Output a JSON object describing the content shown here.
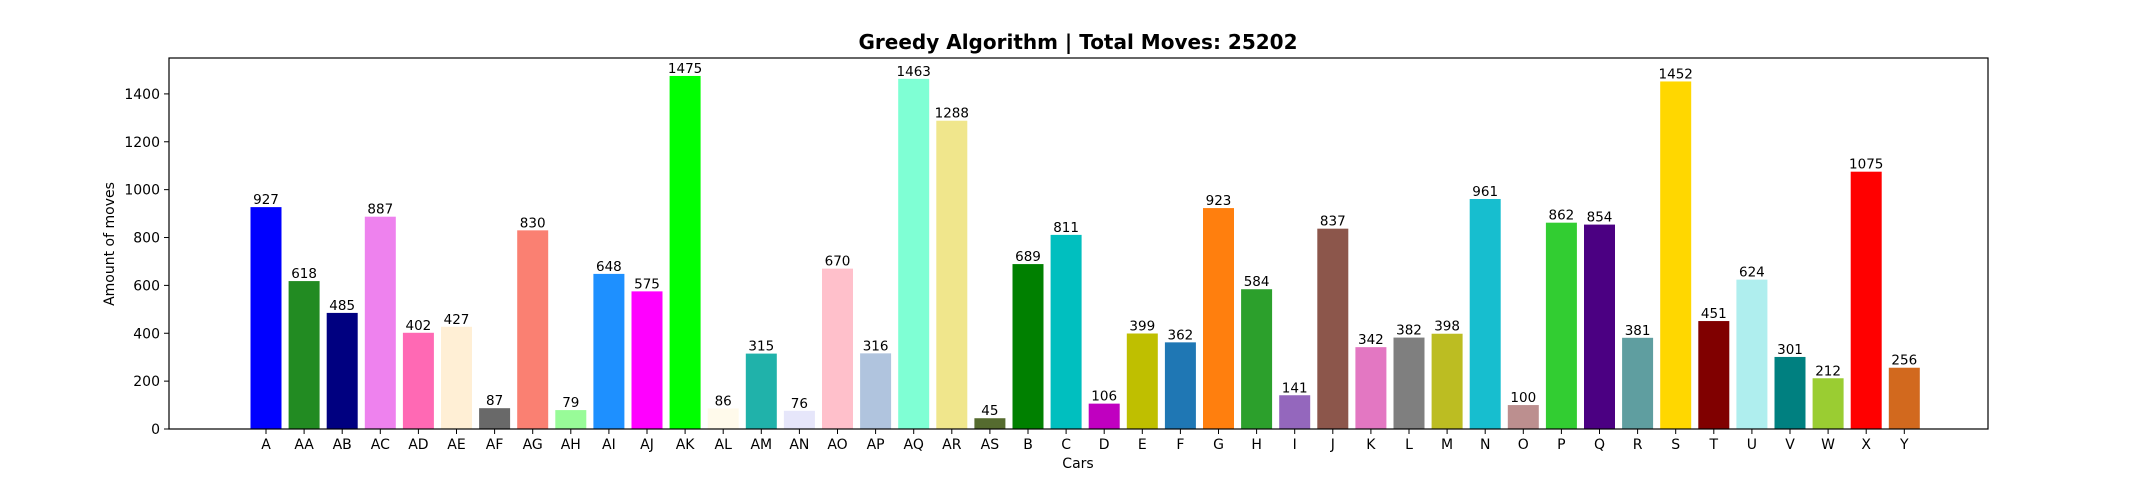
{
  "chart_data": {
    "type": "bar",
    "title": "Greedy Algorithm | Total Moves: 25202",
    "xlabel": "Cars",
    "ylabel": "Amount of moves",
    "ylim": [
      0,
      1550
    ],
    "yticks": [
      0,
      200,
      400,
      600,
      800,
      1000,
      1200,
      1400
    ],
    "grid": false,
    "categories": [
      "A",
      "AA",
      "AB",
      "AC",
      "AD",
      "AE",
      "AF",
      "AG",
      "AH",
      "AI",
      "AJ",
      "AK",
      "AL",
      "AM",
      "AN",
      "AO",
      "AP",
      "AQ",
      "AR",
      "AS",
      "B",
      "C",
      "D",
      "E",
      "F",
      "G",
      "H",
      "I",
      "J",
      "K",
      "L",
      "M",
      "N",
      "O",
      "P",
      "Q",
      "R",
      "S",
      "T",
      "U",
      "V",
      "W",
      "X",
      "Y"
    ],
    "values": [
      927,
      618,
      485,
      887,
      402,
      427,
      87,
      830,
      79,
      648,
      575,
      1475,
      86,
      315,
      76,
      670,
      316,
      1463,
      1288,
      45,
      689,
      811,
      106,
      399,
      362,
      923,
      584,
      141,
      837,
      342,
      382,
      398,
      961,
      100,
      862,
      854,
      381,
      1452,
      451,
      624,
      301,
      212,
      1075,
      256
    ],
    "colors": [
      "#0000ff",
      "#228b22",
      "#000080",
      "#ee82ee",
      "#ff69b4",
      "#ffefd5",
      "#696969",
      "#fa8072",
      "#98fb98",
      "#1e90ff",
      "#ff00ff",
      "#00ff00",
      "#fffaeb",
      "#20b2aa",
      "#e6e6fa",
      "#ffc0cb",
      "#b0c4de",
      "#7fffd4",
      "#f0e68c",
      "#556b2f",
      "#008000",
      "#00bfbf",
      "#c000c0",
      "#bfbf00",
      "#1f77b4",
      "#ff7f0e",
      "#2ca02c",
      "#9467bd",
      "#8c564b",
      "#e377c2",
      "#7f7f7f",
      "#bcbd22",
      "#17becf",
      "#bc8f8f",
      "#32cd32",
      "#4b0082",
      "#5f9ea0",
      "#ffd700",
      "#800000",
      "#afeeee",
      "#008080",
      "#9acd32",
      "#ff0000",
      "#d2691e"
    ]
  }
}
